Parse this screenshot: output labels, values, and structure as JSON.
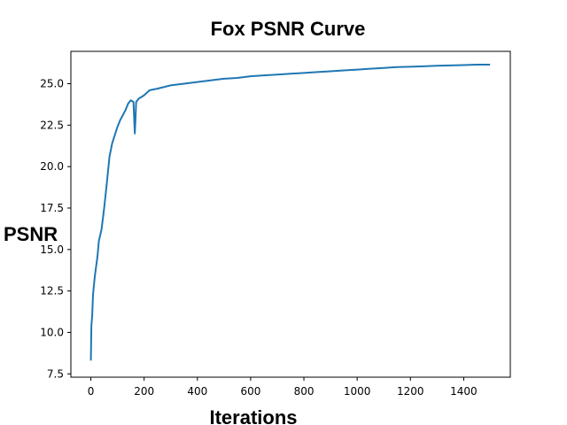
{
  "chart_data": {
    "type": "line",
    "title": "Fox PSNR Curve",
    "xlabel": "Iterations",
    "ylabel": "PSNR",
    "xlim": [
      -75,
      1575
    ],
    "ylim": [
      7.3,
      26.95
    ],
    "xticks": [
      0,
      200,
      400,
      600,
      800,
      1000,
      1200,
      1400
    ],
    "yticks": [
      7.5,
      10.0,
      12.5,
      15.0,
      17.5,
      20.0,
      22.5,
      25.0
    ],
    "grid": false,
    "color": "#1f77b4",
    "series": [
      {
        "x": [
          0,
          2,
          5,
          8,
          10,
          15,
          20,
          25,
          30,
          40,
          50,
          60,
          70,
          80,
          90,
          100,
          110,
          120,
          130,
          140,
          150,
          160,
          165,
          168,
          170,
          175,
          180,
          200,
          220,
          250,
          300,
          350,
          400,
          450,
          500,
          550,
          600,
          650,
          700,
          750,
          800,
          850,
          900,
          950,
          1000,
          1050,
          1100,
          1150,
          1200,
          1250,
          1300,
          1350,
          1400,
          1450,
          1499
        ],
        "y": [
          8.3,
          10.4,
          11.0,
          12.2,
          12.6,
          13.4,
          14.0,
          14.6,
          15.5,
          16.2,
          17.5,
          19.0,
          20.6,
          21.4,
          21.9,
          22.4,
          22.8,
          23.1,
          23.4,
          23.8,
          24.0,
          23.9,
          22.0,
          23.0,
          23.9,
          24.0,
          24.1,
          24.3,
          24.6,
          24.7,
          24.9,
          25.0,
          25.1,
          25.2,
          25.3,
          25.35,
          25.45,
          25.5,
          25.55,
          25.6,
          25.65,
          25.7,
          25.75,
          25.8,
          25.85,
          25.9,
          25.95,
          26.0,
          26.02,
          26.05,
          26.08,
          26.1,
          26.12,
          26.15,
          26.15
        ]
      }
    ]
  }
}
